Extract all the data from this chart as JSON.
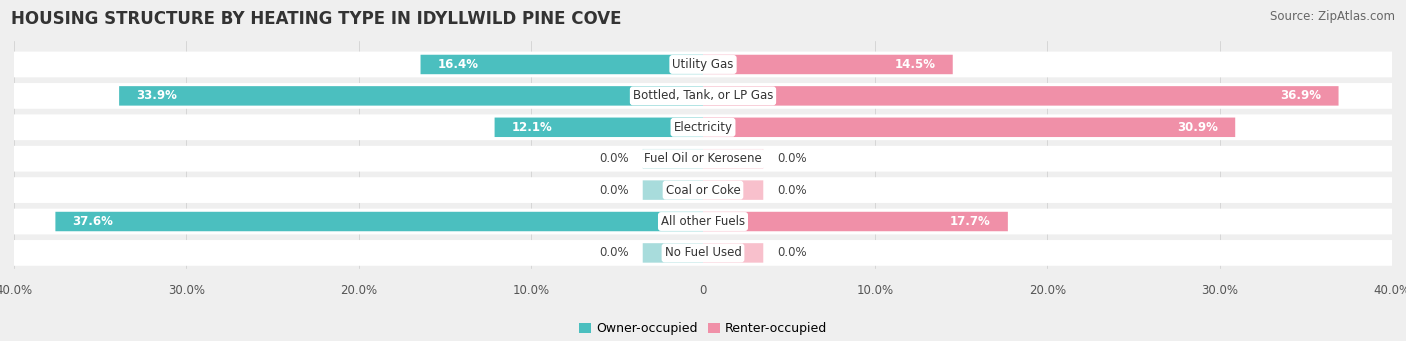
{
  "title": "HOUSING STRUCTURE BY HEATING TYPE IN IDYLLWILD PINE COVE",
  "source": "Source: ZipAtlas.com",
  "categories": [
    "Utility Gas",
    "Bottled, Tank, or LP Gas",
    "Electricity",
    "Fuel Oil or Kerosene",
    "Coal or Coke",
    "All other Fuels",
    "No Fuel Used"
  ],
  "owner_values": [
    16.4,
    33.9,
    12.1,
    0.0,
    0.0,
    37.6,
    0.0
  ],
  "renter_values": [
    14.5,
    36.9,
    30.9,
    0.0,
    0.0,
    17.7,
    0.0
  ],
  "owner_color": "#4BBFBF",
  "renter_color": "#F090A8",
  "owner_color_light": "#A8DCDC",
  "renter_color_light": "#F8C0CC",
  "bg_color": "#EFEFEF",
  "row_bg_color": "#FFFFFF",
  "xlim": 40.0,
  "zero_stub": 3.5,
  "title_fontsize": 12,
  "source_fontsize": 8.5,
  "label_fontsize": 8.5,
  "tick_fontsize": 8.5,
  "legend_fontsize": 9,
  "bar_height": 0.62,
  "category_label_fontsize": 8.5,
  "tick_positions": [
    -40,
    -30,
    -20,
    -10,
    0,
    10,
    20,
    30,
    40
  ],
  "tick_labels": [
    "40.0%",
    "30.0%",
    "20.0%",
    "10.0%",
    "0",
    "10.0%",
    "20.0%",
    "30.0%",
    "40.0%"
  ]
}
